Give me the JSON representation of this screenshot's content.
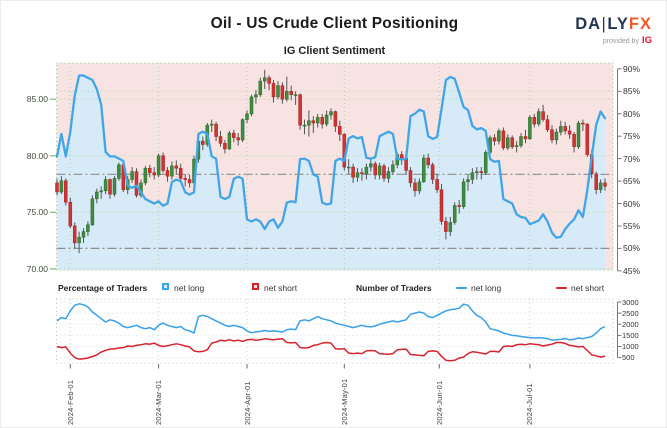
{
  "header": {
    "title": "Oil - US Crude Client Positioning",
    "subtitle": "IG Client Sentiment",
    "logo": {
      "d1": "DA",
      "bar": "|",
      "d2": "LY",
      "fx": "FX",
      "provided": "provided by",
      "ig": "IG"
    }
  },
  "legend": {
    "pct_header": "Percentage of Traders",
    "pct_long": "net long",
    "pct_short": "net short",
    "num_header": "Number of Traders",
    "num_long": "net long",
    "num_short": "net short"
  },
  "colors": {
    "candle_up": "#3f8b3f",
    "candle_up_edge": "#2e6b2e",
    "candle_down": "#ce3434",
    "candle_down_edge": "#a82222",
    "wick": "#555555",
    "sentiment_line": "#42a5e5",
    "area_long": "#d7eaf8",
    "area_short": "#f7e3e1",
    "grid_green": "#aed6ae",
    "border_green": "#9cc89c",
    "grid_gray": "#d9dde3",
    "border_gray": "#b9c4cc",
    "vgrid_bottom": "#c8d2da",
    "refline": "#8f8f8f",
    "axis_spine": "#777777",
    "tick_green": "#86b576",
    "count_long": "#3aa0e8",
    "count_short": "#d6232e"
  },
  "chart_data": {
    "type": "candlestick+line",
    "title": "IG Client Sentiment",
    "x_tick_labels": [
      "2024-Feb-01",
      "2024-Mar-01",
      "2024-Apr-01",
      "2024-May-01",
      "2024-Jun-01",
      "2024-Jul-01"
    ],
    "x_tick_candle_index": [
      3,
      23,
      43,
      65,
      86.5,
      107
    ],
    "price_axis": {
      "side": "left",
      "tick_labels": [
        "85.00",
        "80.00",
        "75.00",
        "70.00"
      ],
      "tick_values": [
        85,
        80,
        75,
        70
      ],
      "range": [
        69.9,
        88.2
      ]
    },
    "pct_axis": {
      "side": "right",
      "tick_values": [
        90,
        85,
        80,
        75,
        70,
        65,
        60,
        55,
        50,
        45
      ],
      "unit": "%",
      "range": [
        45.2,
        91.3
      ]
    },
    "reference_pct_lines": [
      66.5,
      50
    ],
    "candles_ohlc": [
      [
        77.6,
        78.0,
        76.5,
        76.8
      ],
      [
        76.8,
        78.2,
        76.6,
        77.8
      ],
      [
        77.8,
        78.0,
        75.6,
        75.9
      ],
      [
        75.9,
        76.3,
        73.6,
        73.8
      ],
      [
        73.8,
        74.1,
        71.8,
        72.3
      ],
      [
        72.3,
        73.3,
        71.4,
        72.8
      ],
      [
        72.8,
        73.6,
        72.3,
        73.3
      ],
      [
        73.3,
        74.2,
        72.9,
        73.9
      ],
      [
        73.9,
        76.5,
        73.8,
        76.2
      ],
      [
        76.2,
        77.1,
        75.8,
        76.8
      ],
      [
        76.8,
        77.3,
        76.2,
        76.9
      ],
      [
        76.9,
        78.2,
        76.6,
        77.9
      ],
      [
        77.9,
        78.0,
        76.2,
        76.6
      ],
      [
        76.6,
        78.2,
        76.4,
        78.0
      ],
      [
        78.0,
        79.4,
        77.8,
        79.2
      ],
      [
        79.2,
        79.3,
        76.8,
        77.0
      ],
      [
        77.0,
        78.2,
        76.6,
        77.9
      ],
      [
        77.9,
        79.0,
        77.6,
        78.6
      ],
      [
        78.6,
        78.9,
        76.3,
        76.5
      ],
      [
        76.5,
        77.9,
        76.3,
        77.6
      ],
      [
        77.6,
        79.1,
        77.4,
        78.9
      ],
      [
        78.9,
        79.2,
        78.1,
        78.5
      ],
      [
        78.5,
        79.0,
        77.9,
        78.3
      ],
      [
        78.3,
        80.2,
        78.1,
        80.0
      ],
      [
        80.0,
        80.3,
        78.5,
        78.7
      ],
      [
        78.7,
        79.0,
        77.7,
        78.2
      ],
      [
        78.2,
        79.5,
        77.9,
        79.1
      ],
      [
        79.1,
        79.6,
        78.4,
        78.9
      ],
      [
        78.9,
        79.3,
        77.7,
        78.0
      ],
      [
        78.0,
        78.4,
        77.3,
        77.9
      ],
      [
        77.9,
        78.3,
        77.2,
        77.6
      ],
      [
        77.6,
        80.0,
        77.4,
        79.7
      ],
      [
        79.7,
        81.6,
        79.4,
        81.3
      ],
      [
        81.3,
        81.7,
        80.5,
        81.0
      ],
      [
        81.0,
        82.9,
        80.8,
        82.7
      ],
      [
        82.7,
        83.2,
        82.1,
        82.8
      ],
      [
        82.8,
        83.0,
        81.3,
        81.7
      ],
      [
        81.7,
        82.2,
        80.8,
        81.1
      ],
      [
        81.1,
        81.4,
        80.2,
        80.6
      ],
      [
        80.6,
        82.2,
        80.5,
        82.0
      ],
      [
        82.0,
        82.3,
        81.2,
        81.6
      ],
      [
        81.6,
        82.0,
        80.9,
        81.4
      ],
      [
        81.4,
        83.3,
        81.2,
        83.2
      ],
      [
        83.2,
        84.0,
        82.9,
        83.7
      ],
      [
        83.7,
        85.4,
        83.5,
        85.2
      ],
      [
        85.2,
        85.8,
        84.6,
        85.4
      ],
      [
        85.4,
        86.9,
        85.2,
        86.6
      ],
      [
        86.6,
        87.6,
        85.9,
        86.9
      ],
      [
        86.9,
        87.1,
        85.8,
        86.4
      ],
      [
        86.4,
        86.7,
        84.7,
        85.2
      ],
      [
        85.2,
        86.6,
        85.0,
        86.2
      ],
      [
        86.2,
        86.5,
        84.6,
        85.0
      ],
      [
        85.0,
        87.0,
        84.8,
        85.7
      ],
      [
        85.7,
        86.2,
        84.9,
        85.4
      ],
      [
        85.4,
        85.7,
        84.5,
        85.4
      ],
      [
        85.4,
        85.5,
        82.3,
        82.7
      ],
      [
        82.7,
        83.2,
        81.9,
        82.7
      ],
      [
        82.7,
        84.0,
        81.7,
        83.1
      ],
      [
        83.1,
        83.5,
        82.0,
        82.9
      ],
      [
        82.9,
        83.7,
        82.5,
        83.4
      ],
      [
        83.4,
        83.7,
        82.4,
        82.8
      ],
      [
        82.8,
        84.0,
        82.6,
        83.6
      ],
      [
        83.6,
        84.2,
        83.2,
        83.9
      ],
      [
        83.9,
        84.0,
        82.1,
        82.6
      ],
      [
        82.6,
        83.1,
        81.3,
        81.9
      ],
      [
        81.9,
        82.0,
        78.7,
        79.0
      ],
      [
        79.0,
        79.7,
        78.4,
        79.0
      ],
      [
        79.0,
        79.3,
        77.6,
        78.1
      ],
      [
        78.1,
        78.9,
        77.7,
        78.5
      ],
      [
        78.5,
        78.9,
        77.8,
        78.4
      ],
      [
        78.4,
        79.3,
        77.9,
        79.0
      ],
      [
        79.0,
        79.8,
        78.6,
        79.3
      ],
      [
        79.3,
        79.5,
        77.9,
        78.3
      ],
      [
        78.3,
        79.4,
        77.9,
        79.1
      ],
      [
        79.1,
        79.3,
        77.7,
        78.0
      ],
      [
        78.0,
        79.0,
        77.6,
        78.6
      ],
      [
        78.6,
        79.6,
        78.3,
        79.2
      ],
      [
        79.2,
        80.3,
        78.9,
        80.1
      ],
      [
        80.1,
        80.4,
        79.2,
        79.8
      ],
      [
        79.8,
        80.0,
        78.3,
        78.7
      ],
      [
        78.7,
        79.0,
        77.2,
        77.6
      ],
      [
        77.6,
        78.0,
        76.4,
        76.9
      ],
      [
        76.9,
        78.0,
        76.6,
        77.7
      ],
      [
        77.7,
        80.1,
        77.6,
        79.8
      ],
      [
        79.8,
        80.2,
        78.9,
        79.2
      ],
      [
        79.2,
        79.4,
        77.5,
        77.9
      ],
      [
        77.9,
        78.4,
        76.7,
        77.0
      ],
      [
        77.0,
        77.5,
        73.9,
        74.2
      ],
      [
        74.2,
        74.6,
        72.6,
        73.3
      ],
      [
        73.3,
        74.6,
        72.9,
        74.1
      ],
      [
        74.1,
        75.9,
        73.9,
        75.6
      ],
      [
        75.6,
        76.1,
        74.9,
        75.5
      ],
      [
        75.5,
        78.0,
        75.3,
        77.7
      ],
      [
        77.7,
        78.3,
        76.9,
        77.9
      ],
      [
        77.9,
        78.9,
        77.5,
        78.5
      ],
      [
        78.5,
        79.0,
        77.9,
        78.6
      ],
      [
        78.6,
        79.0,
        77.9,
        78.5
      ],
      [
        78.5,
        80.5,
        78.3,
        80.3
      ],
      [
        80.3,
        81.8,
        80.1,
        81.6
      ],
      [
        81.6,
        81.9,
        80.9,
        81.3
      ],
      [
        81.3,
        82.4,
        81.0,
        82.2
      ],
      [
        82.2,
        82.5,
        80.5,
        80.7
      ],
      [
        80.7,
        81.9,
        80.5,
        81.6
      ],
      [
        81.6,
        81.8,
        80.6,
        80.8
      ],
      [
        80.8,
        81.3,
        80.3,
        80.9
      ],
      [
        80.9,
        82.0,
        80.7,
        81.7
      ],
      [
        81.7,
        82.3,
        81.1,
        81.5
      ],
      [
        81.5,
        83.6,
        81.4,
        83.4
      ],
      [
        83.4,
        83.7,
        82.5,
        82.8
      ],
      [
        82.8,
        84.2,
        82.6,
        83.9
      ],
      [
        83.9,
        84.5,
        83.0,
        83.2
      ],
      [
        83.2,
        83.6,
        82.1,
        82.3
      ],
      [
        82.3,
        82.7,
        81.1,
        81.4
      ],
      [
        81.4,
        82.4,
        81.0,
        82.1
      ],
      [
        82.1,
        83.1,
        81.8,
        82.6
      ],
      [
        82.6,
        83.0,
        81.9,
        82.2
      ],
      [
        82.2,
        82.7,
        81.5,
        81.9
      ],
      [
        81.9,
        82.1,
        80.3,
        80.8
      ],
      [
        80.8,
        83.1,
        80.6,
        82.9
      ],
      [
        82.9,
        83.2,
        82.2,
        82.8
      ],
      [
        82.8,
        82.9,
        79.9,
        80.1
      ],
      [
        80.1,
        80.5,
        78.0,
        78.4
      ],
      [
        78.4,
        78.6,
        76.6,
        77.0
      ],
      [
        77.0,
        77.9,
        76.7,
        77.6
      ],
      [
        77.6,
        78.0,
        76.9,
        77.3
      ]
    ],
    "net_long_pct": [
      70.5,
      75.5,
      70.5,
      76,
      84,
      88.5,
      88.5,
      88,
      87.5,
      85.5,
      82,
      71.5,
      70.5,
      70.5,
      70,
      69.5,
      64,
      63.5,
      64,
      62.5,
      61,
      60.5,
      60,
      60.5,
      59.5,
      60,
      64.8,
      65.3,
      65,
      62.5,
      62,
      62.5,
      75.5,
      76,
      75.5,
      70.5,
      70,
      61.5,
      61,
      61.5,
      65.5,
      66,
      65.5,
      56.5,
      56,
      56.5,
      56,
      54.3,
      56,
      56.5,
      54.6,
      56,
      60.2,
      60.5,
      60.3,
      69.9,
      70,
      69.5,
      66.5,
      66,
      60.2,
      59.8,
      60,
      69.5,
      70,
      69.5,
      74.5,
      75,
      74.5,
      74.8,
      70.2,
      70,
      70.3,
      75,
      75.5,
      76,
      75.5,
      70,
      69.8,
      70,
      79.5,
      80,
      80.9,
      80.5,
      75,
      74.4,
      74.8,
      81,
      87.5,
      88.2,
      87.8,
      84.7,
      81.5,
      80.8,
      77.3,
      76.5,
      76.8,
      76.2,
      69.9,
      69.3,
      69.5,
      61,
      60.5,
      60,
      57.6,
      57,
      56.8,
      55.4,
      55.8,
      56.2,
      57.6,
      56,
      53.5,
      52.4,
      52.6,
      54.3,
      55.5,
      56.5,
      58.5,
      57,
      63,
      70.5,
      77.5,
      80.5,
      79
    ],
    "traders_panel": {
      "type": "line",
      "y_tick_values": [
        3000,
        2500,
        2000,
        1500,
        1000,
        500
      ],
      "range": [
        273,
        3136
      ],
      "net_long": [
        2150,
        2300,
        2250,
        2600,
        2850,
        2920,
        2880,
        2780,
        2550,
        2400,
        2250,
        2100,
        2200,
        2150,
        2050,
        1900,
        1850,
        1900,
        1950,
        1850,
        1800,
        1850,
        1750,
        1950,
        2050,
        1950,
        1900,
        1850,
        1900,
        1750,
        1700,
        1600,
        2350,
        2400,
        2350,
        2250,
        2150,
        2050,
        1950,
        1900,
        1950,
        1900,
        1850,
        1700,
        1620,
        1650,
        1680,
        1720,
        1680,
        1700,
        1680,
        1650,
        1750,
        1780,
        1760,
        2150,
        2200,
        2150,
        2250,
        2350,
        2250,
        2200,
        2150,
        2050,
        2000,
        1950,
        1900,
        1850,
        1900,
        1950,
        1900,
        1880,
        1920,
        2000,
        2050,
        2100,
        2150,
        2100,
        2150,
        2200,
        2450,
        2500,
        2550,
        2500,
        2350,
        2300,
        2400,
        2500,
        2600,
        2650,
        2680,
        2720,
        2900,
        2850,
        2600,
        2400,
        2300,
        2100,
        1800,
        1750,
        1700,
        1600,
        1550,
        1500,
        1480,
        1450,
        1420,
        1400,
        1380,
        1400,
        1380,
        1350,
        1280,
        1300,
        1320,
        1350,
        1300,
        1320,
        1380,
        1350,
        1400,
        1450,
        1600,
        1800,
        1900
      ],
      "net_short": [
        1000,
        950,
        980,
        700,
        500,
        430,
        450,
        480,
        550,
        620,
        750,
        830,
        880,
        900,
        930,
        950,
        1020,
        1000,
        1050,
        1080,
        1120,
        1100,
        1150,
        1050,
        1000,
        1030,
        1080,
        1120,
        1080,
        1020,
        980,
        800,
        760,
        780,
        850,
        1150,
        1200,
        1280,
        1250,
        1300,
        1250,
        1280,
        1230,
        1300,
        1320,
        1280,
        1300,
        1350,
        1320,
        1300,
        1330,
        1350,
        1180,
        1160,
        1180,
        950,
        930,
        950,
        1050,
        1080,
        1150,
        1180,
        1150,
        900,
        880,
        900,
        700,
        680,
        700,
        680,
        800,
        820,
        800,
        680,
        660,
        650,
        680,
        850,
        870,
        880,
        640,
        620,
        600,
        580,
        780,
        800,
        780,
        560,
        380,
        360,
        380,
        480,
        520,
        680,
        760,
        740,
        700,
        660,
        780,
        780,
        750,
        1000,
        1020,
        1000,
        1080,
        1100,
        1080,
        1120,
        1100,
        1080,
        1020,
        1060,
        1100,
        1180,
        1180,
        1140,
        1050,
        1020,
        980,
        1000,
        820,
        620,
        580,
        520,
        560
      ]
    }
  }
}
